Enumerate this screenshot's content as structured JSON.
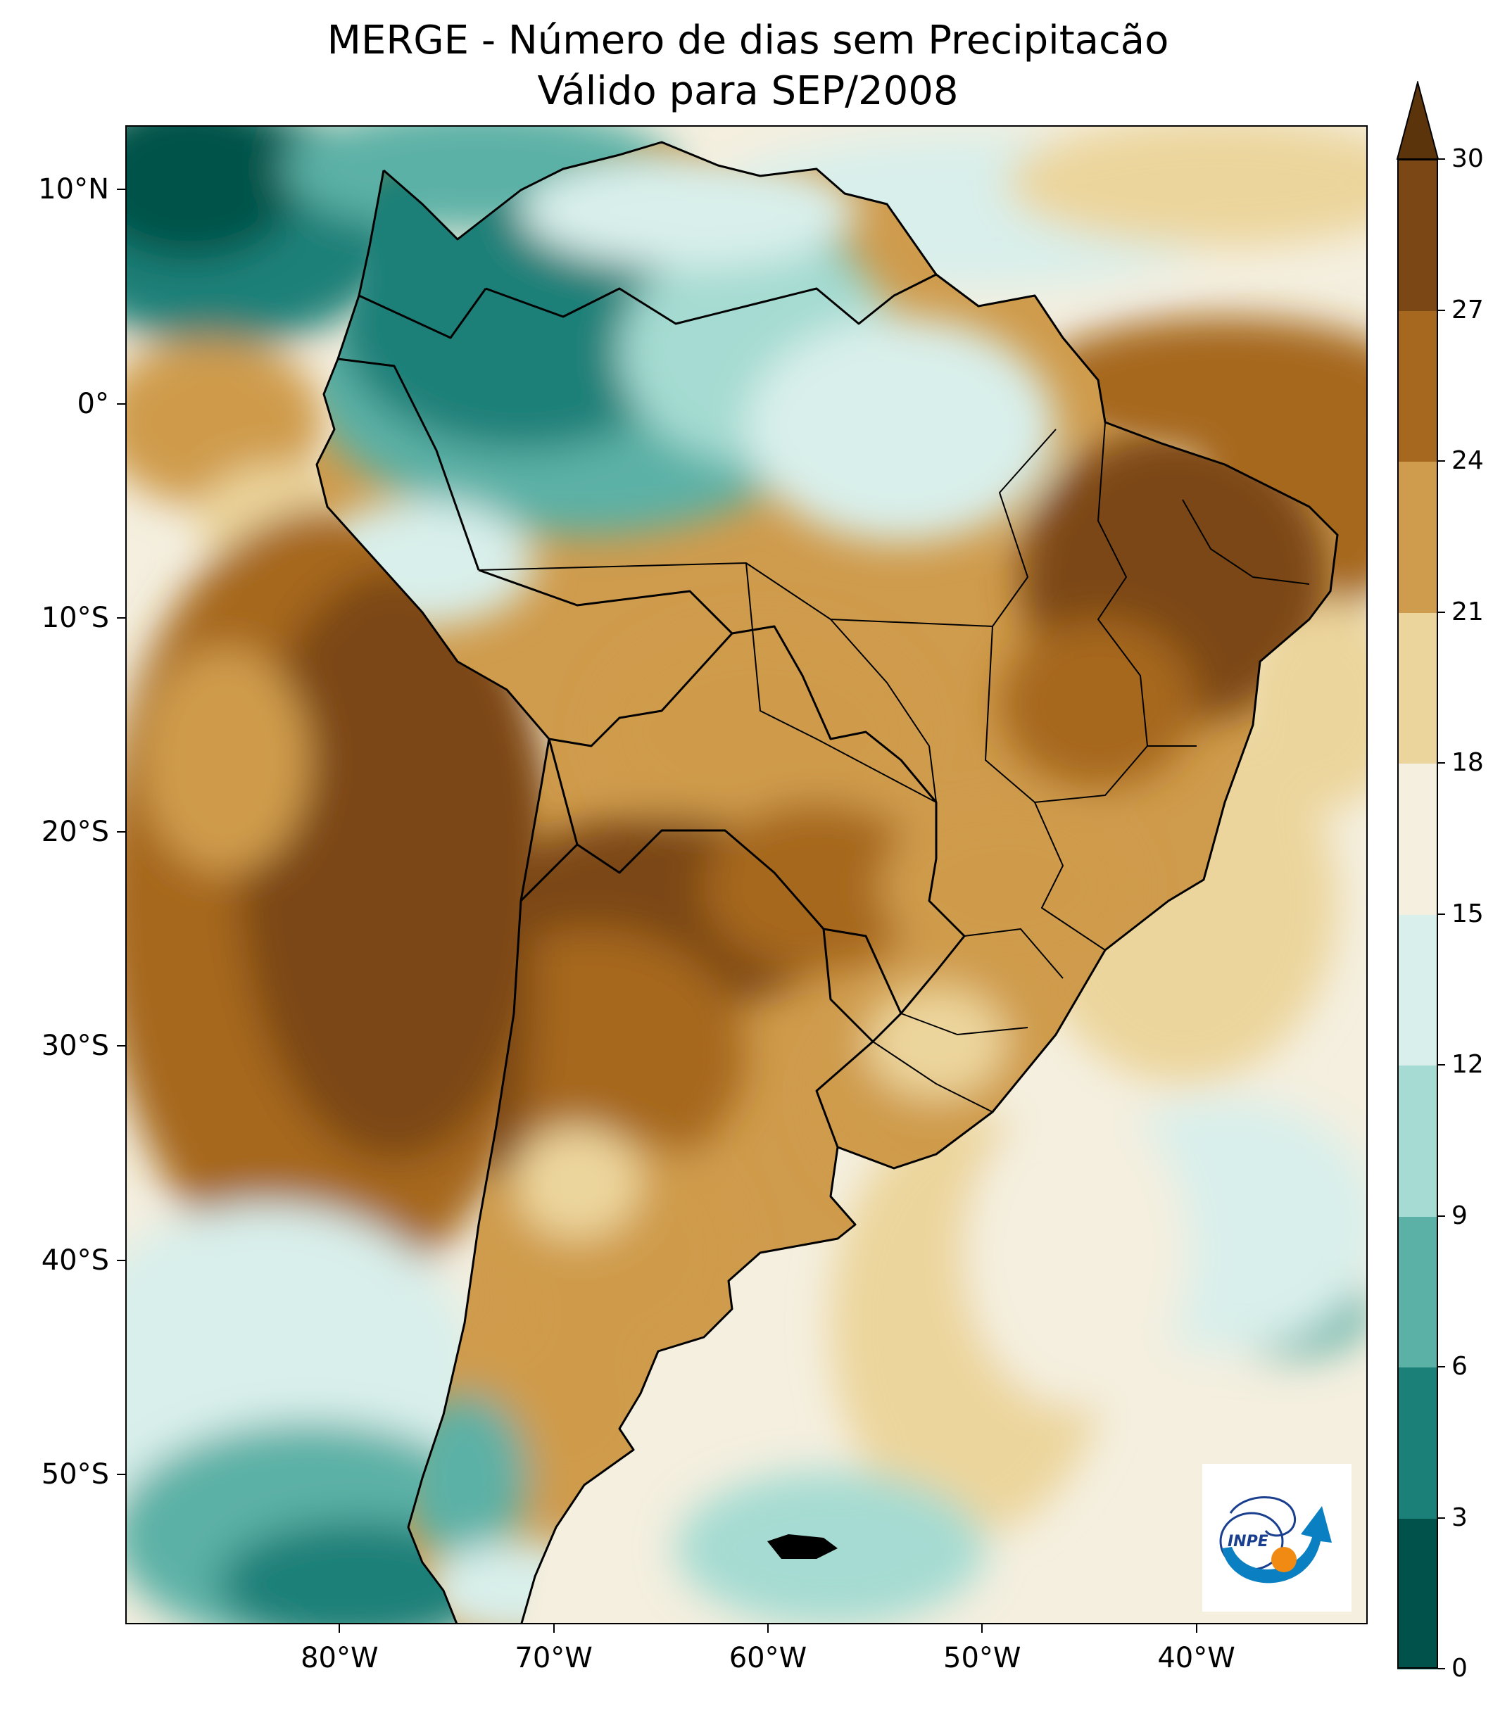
{
  "title": {
    "line1": "MERGE - Número de dias sem Precipitacão",
    "line2": "Válido para SEP/2008"
  },
  "map": {
    "lon_range": [
      -90,
      -32
    ],
    "lat_range": [
      -57,
      13
    ],
    "lat_ticks": [
      {
        "value": 10,
        "label": "10°N"
      },
      {
        "value": 0,
        "label": "0°"
      },
      {
        "value": -10,
        "label": "10°S"
      },
      {
        "value": -20,
        "label": "20°S"
      },
      {
        "value": -30,
        "label": "30°S"
      },
      {
        "value": -40,
        "label": "40°S"
      },
      {
        "value": -50,
        "label": "50°S"
      }
    ],
    "lon_ticks": [
      {
        "value": -80,
        "label": "80°W"
      },
      {
        "value": -70,
        "label": "70°W"
      },
      {
        "value": -60,
        "label": "60°W"
      },
      {
        "value": -50,
        "label": "50°W"
      },
      {
        "value": -40,
        "label": "40°W"
      }
    ]
  },
  "colorbar": {
    "levels": [
      0,
      3,
      6,
      9,
      12,
      15,
      18,
      21,
      24,
      27,
      30
    ],
    "labels": [
      "0",
      "3",
      "6",
      "9",
      "12",
      "15",
      "18",
      "21",
      "24",
      "27",
      "30"
    ],
    "colors": [
      "#01524a",
      "#1a8078",
      "#5bb1a6",
      "#a5dbd2",
      "#d9efeb",
      "#f4efdf",
      "#ecd59c",
      "#cf9b4c",
      "#a6681f",
      "#7b4714"
    ],
    "extend_color": "#5c340c"
  },
  "palette": {
    "ocean_wet": "#5bb1a6",
    "ocean_mid": "#d9efeb",
    "ocean_dry": "#f4efdf",
    "amazon_wet": "#1a8078",
    "land_dry": "#cf9b4c",
    "land_very_dry": "#7b4714",
    "border": "#000000"
  },
  "logo": {
    "text": "INPE"
  }
}
